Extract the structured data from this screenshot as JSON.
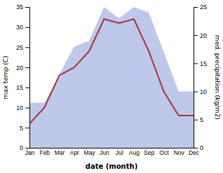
{
  "chart_data": {
    "type": "line",
    "xlabel": "date (month)",
    "ylabel": "max temp (C)",
    "y2label": "med. precipitation (kg/m2)",
    "categories": [
      "Jan",
      "Feb",
      "Mar",
      "Apr",
      "May",
      "Jun",
      "Jul",
      "Aug",
      "Sep",
      "Oct",
      "Nov",
      "Dec"
    ],
    "series": [
      {
        "type": "area",
        "axis": "y2",
        "color": "#b0c0e8",
        "values": [
          8.0,
          8.0,
          13.0,
          18.0,
          19.0,
          25.0,
          23.0,
          25.0,
          24.0,
          17.0,
          10.0,
          10.0
        ]
      },
      {
        "type": "line",
        "color": "#aa3333",
        "values": [
          6.0,
          10.0,
          18.0,
          20.0,
          24.0,
          32.0,
          31.0,
          32.0,
          24.0,
          14.0,
          8.0,
          8.0
        ]
      }
    ],
    "ylim": [
      0,
      35
    ],
    "yticks": [
      0,
      5,
      10,
      15,
      20,
      25,
      30,
      35
    ],
    "y2lim": [
      0,
      25
    ],
    "y2ticks": [
      0,
      5,
      10,
      15,
      20,
      25
    ]
  }
}
